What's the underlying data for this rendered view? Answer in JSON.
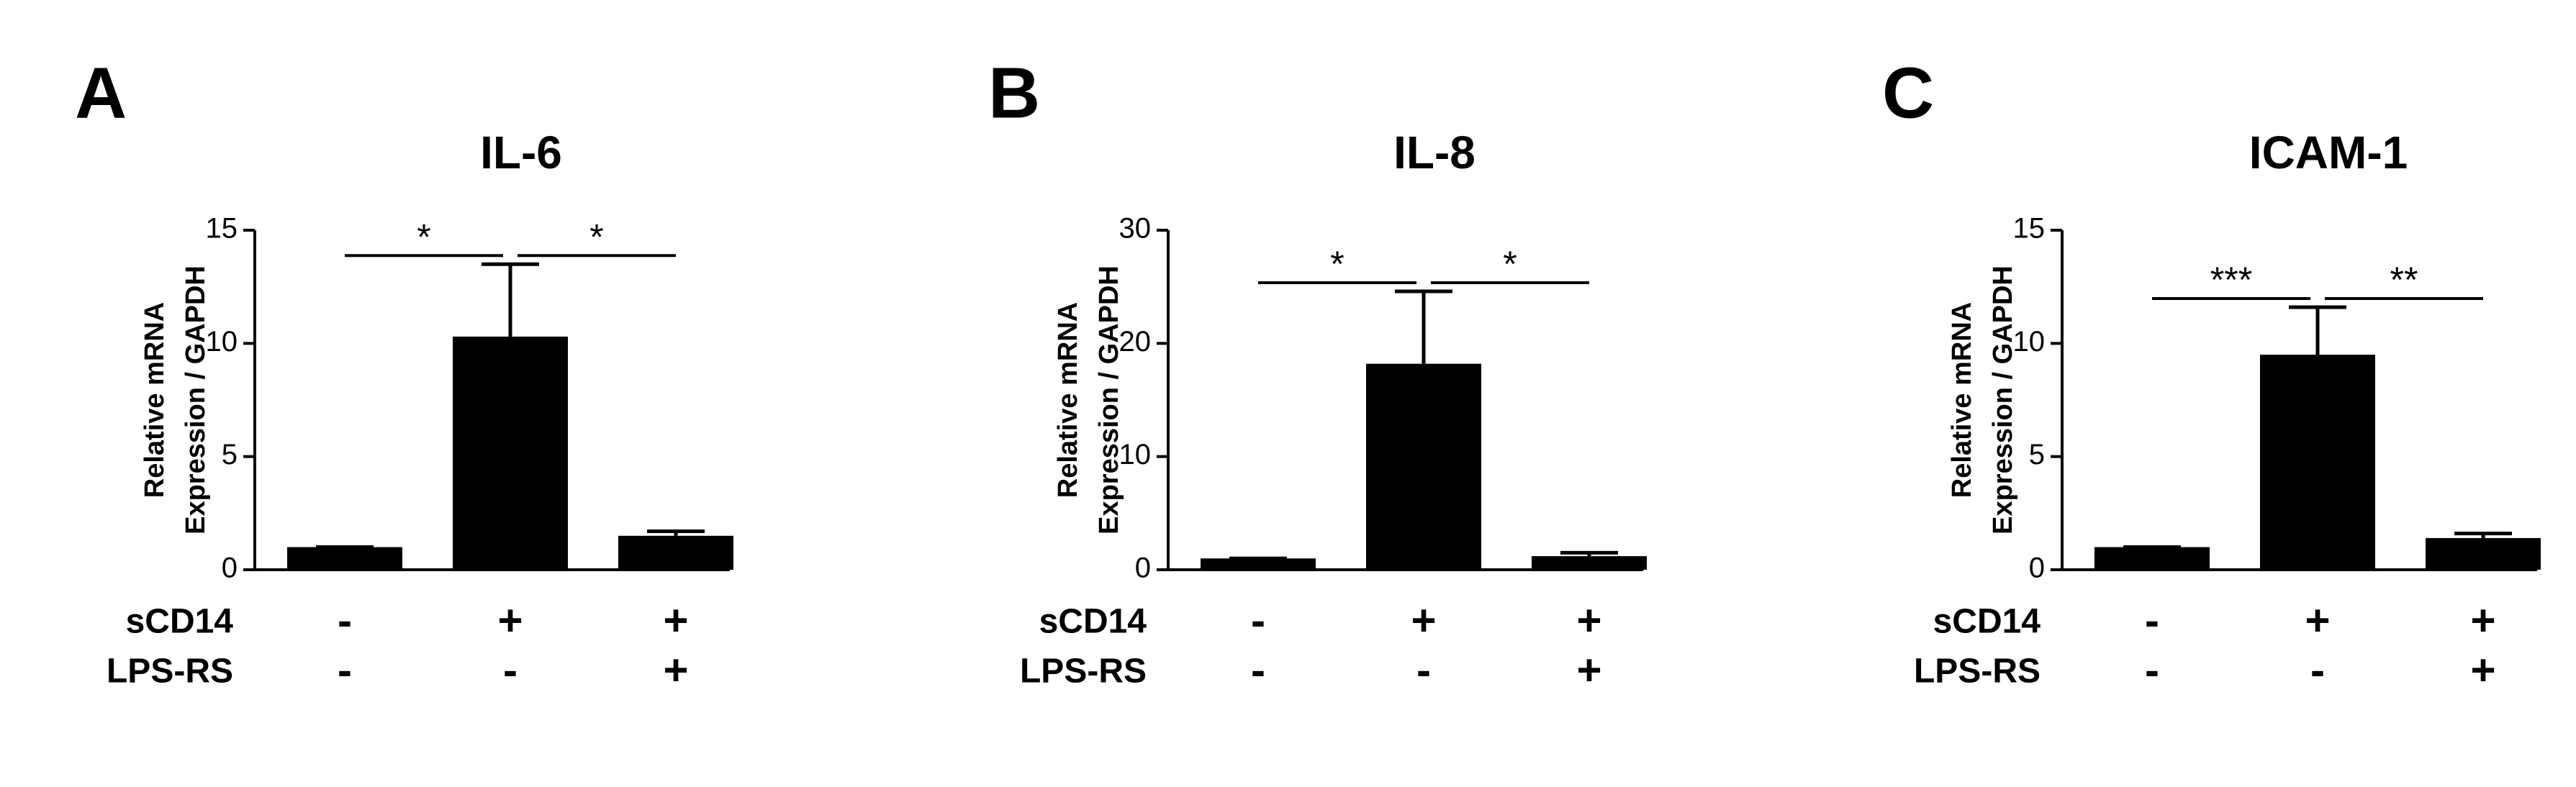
{
  "chart_data": [
    {
      "type": "bar",
      "panel": "A",
      "title": "IL-6",
      "ylabel": [
        "Relative mRNA",
        "Expression / GAPDH"
      ],
      "values": [
        1,
        10.3,
        1.5
      ],
      "errors": [
        0,
        3.2,
        0.2
      ],
      "color": "#000000",
      "ylim": [
        0,
        15
      ],
      "yticks": [
        0,
        5,
        10,
        15
      ],
      "significance": [
        "*",
        "*"
      ],
      "conditions": [
        {
          "name": "sCD14",
          "values": [
            "-",
            "+",
            "+"
          ]
        },
        {
          "name": "LPS-RS",
          "values": [
            "-",
            "-",
            "+"
          ]
        }
      ]
    },
    {
      "type": "bar",
      "panel": "B",
      "title": "IL-8",
      "ylabel": [
        "Relative mRNA",
        "Expression / GAPDH"
      ],
      "values": [
        1,
        18.2,
        1.2
      ],
      "errors": [
        0,
        6.4,
        0.3
      ],
      "color": "#000000",
      "ylim": [
        0,
        30
      ],
      "yticks": [
        0,
        10,
        20,
        30
      ],
      "significance": [
        "*",
        "*"
      ],
      "conditions": [
        {
          "name": "sCD14",
          "values": [
            "-",
            "+",
            "+"
          ]
        },
        {
          "name": "LPS-RS",
          "values": [
            "-",
            "-",
            "+"
          ]
        }
      ]
    },
    {
      "type": "bar",
      "panel": "C",
      "title": "ICAM-1",
      "ylabel": [
        "Relative mRNA",
        "Expression / GAPDH"
      ],
      "values": [
        1,
        9.5,
        1.4
      ],
      "errors": [
        0,
        2.1,
        0.2
      ],
      "color": "#000000",
      "ylim": [
        0,
        15
      ],
      "yticks": [
        0,
        5,
        10,
        15
      ],
      "significance": [
        "***",
        "**"
      ],
      "conditions": [
        {
          "name": "sCD14",
          "values": [
            "-",
            "+",
            "+"
          ]
        },
        {
          "name": "LPS-RS",
          "values": [
            "-",
            "-",
            "+"
          ]
        }
      ]
    }
  ]
}
